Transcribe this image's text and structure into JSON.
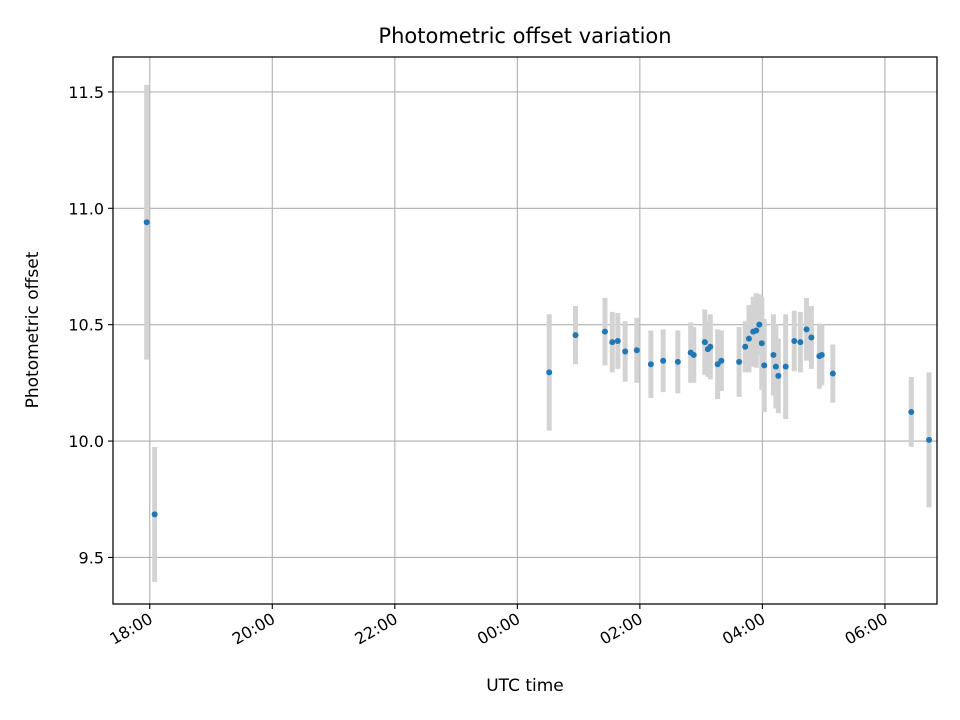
{
  "chart_data": {
    "type": "scatter",
    "title": "Photometric offset variation",
    "xlabel": "UTC time",
    "ylabel": "Photometric offset",
    "grid": true,
    "xlim": [
      -6.6,
      6.85
    ],
    "ylim": [
      9.3,
      11.65
    ],
    "x_unit": "hours relative to 00:00 UTC",
    "xticks": [
      {
        "value": -6,
        "label": "18:00"
      },
      {
        "value": -4,
        "label": "20:00"
      },
      {
        "value": -2,
        "label": "22:00"
      },
      {
        "value": 0,
        "label": "00:00"
      },
      {
        "value": 2,
        "label": "02:00"
      },
      {
        "value": 4,
        "label": "04:00"
      },
      {
        "value": 6,
        "label": "06:00"
      }
    ],
    "yticks": [
      {
        "value": 9.5,
        "label": "9.5"
      },
      {
        "value": 10.0,
        "label": "10.0"
      },
      {
        "value": 10.5,
        "label": "10.5"
      },
      {
        "value": 11.0,
        "label": "11.0"
      },
      {
        "value": 11.5,
        "label": "11.5"
      }
    ],
    "colors": {
      "points": "#1f77b4",
      "errorbars": "#d3d3d3",
      "grid": "#b0b0b0"
    },
    "series": [
      {
        "points": [
          {
            "x": -6.05,
            "y": 10.94,
            "err": 0.59
          },
          {
            "x": -5.92,
            "y": 9.685,
            "err": 0.29
          },
          {
            "x": 0.52,
            "y": 10.295,
            "err": 0.25
          },
          {
            "x": 0.95,
            "y": 10.455,
            "err": 0.125
          },
          {
            "x": 1.43,
            "y": 10.47,
            "err": 0.145
          },
          {
            "x": 1.55,
            "y": 10.425,
            "err": 0.13
          },
          {
            "x": 1.64,
            "y": 10.43,
            "err": 0.12
          },
          {
            "x": 1.76,
            "y": 10.385,
            "err": 0.13
          },
          {
            "x": 1.95,
            "y": 10.39,
            "err": 0.14
          },
          {
            "x": 2.18,
            "y": 10.33,
            "err": 0.145
          },
          {
            "x": 2.38,
            "y": 10.345,
            "err": 0.135
          },
          {
            "x": 2.62,
            "y": 10.34,
            "err": 0.135
          },
          {
            "x": 2.83,
            "y": 10.38,
            "err": 0.13
          },
          {
            "x": 2.88,
            "y": 10.37,
            "err": 0.12
          },
          {
            "x": 3.06,
            "y": 10.425,
            "err": 0.14
          },
          {
            "x": 3.11,
            "y": 10.395,
            "err": 0.12
          },
          {
            "x": 3.15,
            "y": 10.405,
            "err": 0.14
          },
          {
            "x": 3.27,
            "y": 10.33,
            "err": 0.15
          },
          {
            "x": 3.33,
            "y": 10.345,
            "err": 0.13
          },
          {
            "x": 3.62,
            "y": 10.34,
            "err": 0.15
          },
          {
            "x": 3.72,
            "y": 10.405,
            "err": 0.11
          },
          {
            "x": 3.78,
            "y": 10.44,
            "err": 0.145
          },
          {
            "x": 3.85,
            "y": 10.47,
            "err": 0.15
          },
          {
            "x": 3.9,
            "y": 10.475,
            "err": 0.16
          },
          {
            "x": 3.95,
            "y": 10.5,
            "err": 0.13
          },
          {
            "x": 3.99,
            "y": 10.42,
            "err": 0.2
          },
          {
            "x": 4.03,
            "y": 10.325,
            "err": 0.2
          },
          {
            "x": 4.18,
            "y": 10.37,
            "err": 0.175
          },
          {
            "x": 4.22,
            "y": 10.32,
            "err": 0.18
          },
          {
            "x": 4.26,
            "y": 10.28,
            "err": 0.16
          },
          {
            "x": 4.38,
            "y": 10.32,
            "err": 0.225
          },
          {
            "x": 4.52,
            "y": 10.43,
            "err": 0.13
          },
          {
            "x": 4.62,
            "y": 10.425,
            "err": 0.13
          },
          {
            "x": 4.72,
            "y": 10.48,
            "err": 0.135
          },
          {
            "x": 4.8,
            "y": 10.445,
            "err": 0.135
          },
          {
            "x": 4.93,
            "y": 10.365,
            "err": 0.14
          },
          {
            "x": 4.97,
            "y": 10.37,
            "err": 0.13
          },
          {
            "x": 5.15,
            "y": 10.29,
            "err": 0.125
          },
          {
            "x": 6.43,
            "y": 10.125,
            "err": 0.15
          },
          {
            "x": 6.72,
            "y": 10.005,
            "err": 0.29
          }
        ]
      }
    ]
  }
}
